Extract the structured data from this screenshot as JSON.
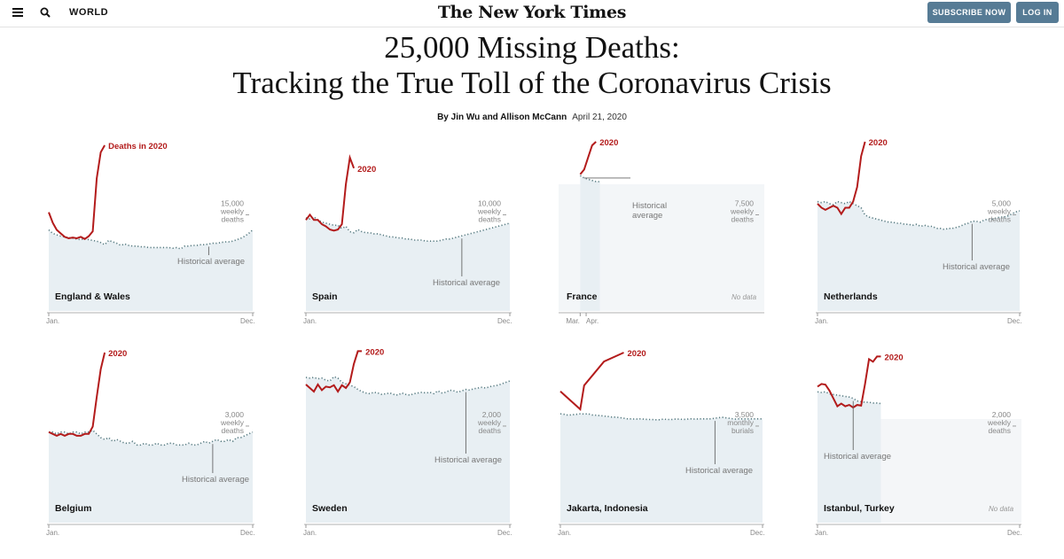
{
  "header": {
    "section": "WORLD",
    "masthead": "The New York Times",
    "subscribe_label": "SUBSCRIBE NOW",
    "login_label": "LOG IN"
  },
  "article": {
    "title_line1": "25,000 Missing Deaths:",
    "title_line2": "Tracking the True Toll of the Coronavirus Crisis",
    "byline": "By Jin Wu and Allison McCann",
    "date": "April 21, 2020"
  },
  "colors": {
    "red": "#b31b1b",
    "area": "#e8eff3",
    "dots": "#567a80",
    "gray": "#777777"
  },
  "chart_data": [
    {
      "type": "line",
      "name": "England & Wales",
      "series_label": "Deaths in 2020",
      "unit_value": "15,000",
      "unit_line2": "weekly",
      "unit_line3": "deaths",
      "avg_label": "Historical average",
      "x_start": "Jan.",
      "x_end": "Dec.",
      "ylim": [
        0,
        24000
      ],
      "weeks": 52,
      "historical": [
        11500,
        11000,
        10800,
        10600,
        10500,
        10400,
        10300,
        10200,
        10100,
        10300,
        10100,
        10000,
        9900,
        9700,
        9400,
        10000,
        9800,
        9600,
        9300,
        9500,
        9300,
        9200,
        9200,
        9100,
        9100,
        9000,
        9000,
        9000,
        9000,
        9000,
        9000,
        8900,
        9000,
        8800,
        9200,
        9200,
        9300,
        9300,
        9400,
        9400,
        9500,
        9600,
        9600,
        9700,
        9800,
        9800,
        9900,
        10100,
        10300,
        10600,
        11000,
        11500
      ],
      "deaths_2020": [
        14000,
        12500,
        11500,
        11000,
        10500,
        10300,
        10400,
        10300,
        10500,
        10200,
        10600,
        11300,
        18800,
        22500,
        23500
      ]
    },
    {
      "type": "line",
      "name": "Spain",
      "series_label": "2020",
      "unit_value": "10,000",
      "unit_line2": "weekly",
      "unit_line3": "deaths",
      "avg_label": "Historical average",
      "x_start": "Jan.",
      "x_end": "Dec.",
      "ylim": [
        0,
        16000
      ],
      "weeks": 52,
      "historical": [
        8800,
        8700,
        8900,
        8600,
        8400,
        8300,
        8200,
        8100,
        8100,
        7800,
        8000,
        7500,
        7400,
        7700,
        7500,
        7400,
        7400,
        7300,
        7300,
        7200,
        7100,
        7000,
        7000,
        6900,
        6900,
        6800,
        6800,
        6700,
        6700,
        6700,
        6600,
        6600,
        6600,
        6600,
        6700,
        6800,
        6800,
        6900,
        7000,
        7100,
        7200,
        7300,
        7400,
        7500,
        7600,
        7700,
        7800,
        7900,
        8000,
        8100,
        8200,
        8300
      ],
      "deaths_2020": [
        8600,
        9100,
        8600,
        8600,
        8200,
        8000,
        7700,
        7600,
        7700,
        8200,
        12000,
        14500,
        13500
      ]
    },
    {
      "type": "line",
      "name": "France",
      "series_label": "2020",
      "unit_value": "7,500",
      "unit_line2": "weekly",
      "unit_line3": "deaths",
      "avg_label": "Historical average",
      "x_start": "Mar.",
      "x_end": "Apr.",
      "no_data_label": "No data",
      "ylim": [
        0,
        14000
      ],
      "weeks": 52,
      "data_from_week": 5,
      "data_to_week": 10,
      "historical": [
        11200,
        11000,
        10900,
        10800,
        10700,
        10700
      ],
      "deaths_2020": [
        11300,
        11700,
        12700,
        13700,
        14000
      ]
    },
    {
      "type": "line",
      "name": "Netherlands",
      "series_label": "2020",
      "unit_value": "5,000",
      "unit_line2": "weekly",
      "unit_line3": "deaths",
      "avg_label": "Historical average",
      "x_start": "Jan.",
      "x_end": "Dec.",
      "ylim": [
        0,
        8200
      ],
      "weeks": 52,
      "historical": [
        5300,
        5250,
        5300,
        5200,
        5150,
        5300,
        5250,
        5200,
        5300,
        5200,
        5100,
        5000,
        4650,
        4550,
        4500,
        4450,
        4400,
        4350,
        4300,
        4300,
        4250,
        4250,
        4200,
        4200,
        4150,
        4200,
        4100,
        4150,
        4100,
        4100,
        4000,
        4000,
        3950,
        4000,
        4000,
        4050,
        4100,
        4200,
        4250,
        4350,
        4350,
        4300,
        4400,
        4450,
        4450,
        4500,
        4550,
        4550,
        4600,
        4700,
        4800,
        4850
      ],
      "deaths_2020": [
        5200,
        5000,
        4900,
        5000,
        5100,
        5000,
        4700,
        5000,
        5000,
        5300,
        6000,
        7500,
        8200
      ]
    },
    {
      "type": "line",
      "name": "Belgium",
      "series_label": "2020",
      "unit_value": "3,000",
      "unit_line2": "weekly",
      "unit_line3": "deaths",
      "avg_label": "Historical average",
      "x_start": "Jan.",
      "x_end": "Dec.",
      "ylim": [
        0,
        4600
      ],
      "weeks": 52,
      "historical": [
        2450,
        2450,
        2400,
        2450,
        2450,
        2400,
        2450,
        2450,
        2400,
        2450,
        2450,
        2500,
        2400,
        2300,
        2250,
        2300,
        2200,
        2250,
        2200,
        2150,
        2150,
        2200,
        2100,
        2100,
        2150,
        2100,
        2100,
        2150,
        2100,
        2100,
        2150,
        2150,
        2100,
        2100,
        2100,
        2150,
        2100,
        2100,
        2150,
        2200,
        2150,
        2200,
        2250,
        2200,
        2200,
        2250,
        2200,
        2300,
        2300,
        2350,
        2400,
        2450
      ],
      "deaths_2020": [
        2450,
        2400,
        2350,
        2400,
        2350,
        2400,
        2400,
        2350,
        2350,
        2400,
        2400,
        2600,
        3400,
        4150,
        4600
      ]
    },
    {
      "type": "line",
      "name": "Sweden",
      "series_label": "2020",
      "unit_value": "2,000",
      "unit_line2": "weekly",
      "unit_line3": "deaths",
      "avg_label": "Historical average",
      "x_start": "Jan.",
      "x_end": "Dec.",
      "ylim": [
        0,
        2400
      ],
      "weeks": 52,
      "historical": [
        2050,
        2040,
        2050,
        2030,
        2040,
        2010,
        2000,
        2060,
        2040,
        1980,
        1960,
        1940,
        1920,
        1880,
        1850,
        1830,
        1820,
        1840,
        1830,
        1810,
        1820,
        1830,
        1810,
        1800,
        1830,
        1810,
        1800,
        1820,
        1830,
        1840,
        1830,
        1840,
        1820,
        1860,
        1830,
        1840,
        1870,
        1860,
        1840,
        1860,
        1880,
        1870,
        1890,
        1900,
        1910,
        1900,
        1920,
        1930,
        1940,
        1960,
        1980,
        2000
      ],
      "deaths_2020": [
        1950,
        1900,
        1850,
        1950,
        1870,
        1920,
        1910,
        1940,
        1850,
        1940,
        1900,
        1980,
        2240,
        2420,
        2420
      ]
    },
    {
      "type": "line",
      "name": "Jakarta, Indonesia",
      "series_label": "2020",
      "unit_value": "3,500",
      "unit_line2": "monthly",
      "unit_line3": "burials",
      "avg_label": "Historical average",
      "x_start": "Jan.",
      "x_end": "Dec.",
      "ylim": [
        0,
        5700
      ],
      "weeks": 52,
      "historical": [
        3650,
        3630,
        3600,
        3620,
        3630,
        3650,
        3640,
        3650,
        3610,
        3600,
        3590,
        3570,
        3560,
        3540,
        3540,
        3520,
        3500,
        3480,
        3480,
        3470,
        3480,
        3470,
        3460,
        3460,
        3450,
        3450,
        3470,
        3460,
        3460,
        3470,
        3470,
        3460,
        3470,
        3480,
        3470,
        3480,
        3480,
        3480,
        3480,
        3500,
        3520,
        3530,
        3510,
        3490,
        3470,
        3480,
        3480,
        3480,
        3480,
        3480,
        3480,
        3480
      ],
      "deaths_2020": [
        4400,
        3800,
        4600,
        5400,
        5700
      ],
      "deaths_2020_weeks": [
        0,
        5,
        6,
        11,
        16
      ]
    },
    {
      "type": "line",
      "name": "Istanbul, Turkey",
      "series_label": "2020",
      "unit_value": "2,000",
      "unit_line2": "weekly",
      "unit_line3": "deaths",
      "avg_label": "Historical average",
      "x_start": "Jan.",
      "x_end": "Dec.",
      "no_data_label": "No data",
      "ylim": [
        0,
        2600
      ],
      "weeks": 52,
      "data_from_week": 0,
      "data_to_week": 16,
      "historical": [
        2000,
        1990,
        2000,
        1970,
        1960,
        1950,
        1940,
        1930,
        1920,
        1900,
        1860,
        1850,
        1840,
        1840,
        1830,
        1830,
        1820
      ],
      "deaths_2020": [
        2080,
        2120,
        2110,
        2020,
        1900,
        1780,
        1820,
        1780,
        1800,
        1760,
        1800,
        1790,
        2120,
        2500,
        2460,
        2540,
        2540
      ]
    }
  ]
}
